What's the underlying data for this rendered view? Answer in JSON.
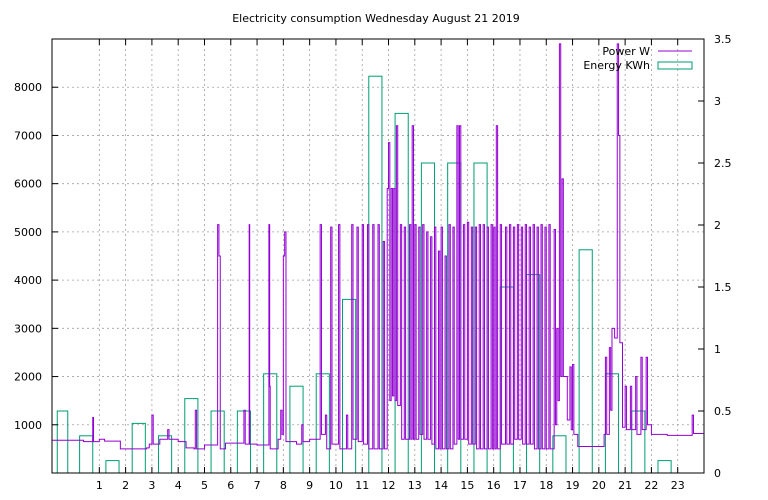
{
  "chart_data": {
    "type": "line",
    "title": "Electricity consumption Wednesday August 21 2019",
    "grid": true,
    "legend_placement": "top-right",
    "x": {
      "range": [
        -0.8,
        24.0
      ],
      "ticks": [
        1,
        2,
        3,
        4,
        5,
        6,
        7,
        8,
        9,
        10,
        11,
        12,
        13,
        14,
        15,
        16,
        17,
        18,
        19,
        20,
        21,
        22,
        23
      ]
    },
    "y_left": {
      "range": [
        0,
        9000
      ],
      "ticks": [
        1000,
        2000,
        3000,
        4000,
        5000,
        6000,
        7000,
        8000
      ]
    },
    "y_right": {
      "range": [
        0,
        3.5
      ],
      "ticks": [
        0,
        0.5,
        1,
        1.5,
        2,
        2.5,
        3,
        3.5
      ]
    },
    "series": [
      {
        "name": "Power W",
        "color": "#9400d3",
        "axis": "left",
        "style": "steps",
        "points": [
          [
            -0.8,
            680
          ],
          [
            0.0,
            680
          ],
          [
            0.4,
            650
          ],
          [
            0.7,
            650
          ],
          [
            0.75,
            1150
          ],
          [
            0.78,
            650
          ],
          [
            1.0,
            700
          ],
          [
            1.2,
            660
          ],
          [
            1.8,
            500
          ],
          [
            2.5,
            500
          ],
          [
            2.8,
            520
          ],
          [
            2.9,
            600
          ],
          [
            3.0,
            1200
          ],
          [
            3.05,
            600
          ],
          [
            3.3,
            700
          ],
          [
            3.6,
            900
          ],
          [
            3.65,
            700
          ],
          [
            4.0,
            650
          ],
          [
            4.3,
            520
          ],
          [
            4.6,
            500
          ],
          [
            4.65,
            1300
          ],
          [
            4.7,
            500
          ],
          [
            5.0,
            580
          ],
          [
            5.3,
            580
          ],
          [
            5.5,
            5150
          ],
          [
            5.55,
            4500
          ],
          [
            5.6,
            500
          ],
          [
            5.8,
            620
          ],
          [
            6.3,
            620
          ],
          [
            6.5,
            1300
          ],
          [
            6.55,
            600
          ],
          [
            6.7,
            5150
          ],
          [
            6.72,
            600
          ],
          [
            7.0,
            580
          ],
          [
            7.3,
            580
          ],
          [
            7.45,
            5150
          ],
          [
            7.48,
            1800
          ],
          [
            7.5,
            500
          ],
          [
            7.8,
            700
          ],
          [
            7.9,
            1300
          ],
          [
            7.95,
            800
          ],
          [
            8.0,
            4500
          ],
          [
            8.05,
            5000
          ],
          [
            8.1,
            650
          ],
          [
            8.5,
            600
          ],
          [
            8.7,
            1000
          ],
          [
            8.75,
            650
          ],
          [
            9.0,
            700
          ],
          [
            9.3,
            700
          ],
          [
            9.4,
            5150
          ],
          [
            9.45,
            800
          ],
          [
            9.6,
            1200
          ],
          [
            9.65,
            500
          ],
          [
            9.8,
            5100
          ],
          [
            9.85,
            600
          ],
          [
            10.1,
            5150
          ],
          [
            10.15,
            500
          ],
          [
            10.4,
            1200
          ],
          [
            10.45,
            500
          ],
          [
            10.6,
            5150
          ],
          [
            10.65,
            700
          ],
          [
            10.8,
            5100
          ],
          [
            10.85,
            650
          ],
          [
            11.0,
            5150
          ],
          [
            11.05,
            600
          ],
          [
            11.2,
            5150
          ],
          [
            11.25,
            500
          ],
          [
            11.4,
            5150
          ],
          [
            11.45,
            500
          ],
          [
            11.6,
            5150
          ],
          [
            11.65,
            500
          ],
          [
            11.8,
            4800
          ],
          [
            11.85,
            500
          ],
          [
            11.95,
            5900
          ],
          [
            12.0,
            6850
          ],
          [
            12.05,
            1500
          ],
          [
            12.1,
            5900
          ],
          [
            12.15,
            1600
          ],
          [
            12.2,
            5900
          ],
          [
            12.25,
            1500
          ],
          [
            12.3,
            7200
          ],
          [
            12.35,
            1400
          ],
          [
            12.45,
            5150
          ],
          [
            12.5,
            700
          ],
          [
            12.6,
            5100
          ],
          [
            12.65,
            700
          ],
          [
            12.8,
            5150
          ],
          [
            12.85,
            700
          ],
          [
            12.9,
            7200
          ],
          [
            12.95,
            700
          ],
          [
            13.0,
            5150
          ],
          [
            13.05,
            700
          ],
          [
            13.15,
            5100
          ],
          [
            13.2,
            800
          ],
          [
            13.3,
            5150
          ],
          [
            13.35,
            700
          ],
          [
            13.45,
            5000
          ],
          [
            13.5,
            700
          ],
          [
            13.6,
            4900
          ],
          [
            13.65,
            600
          ],
          [
            13.75,
            5100
          ],
          [
            13.8,
            500
          ],
          [
            13.9,
            4600
          ],
          [
            13.95,
            500
          ],
          [
            14.0,
            5100
          ],
          [
            14.05,
            500
          ],
          [
            14.15,
            4500
          ],
          [
            14.2,
            500
          ],
          [
            14.3,
            5150
          ],
          [
            14.35,
            500
          ],
          [
            14.45,
            5100
          ],
          [
            14.5,
            600
          ],
          [
            14.6,
            7200
          ],
          [
            14.65,
            700
          ],
          [
            14.7,
            7200
          ],
          [
            14.75,
            700
          ],
          [
            14.85,
            5150
          ],
          [
            14.9,
            700
          ],
          [
            15.0,
            5200
          ],
          [
            15.05,
            600
          ],
          [
            15.15,
            5100
          ],
          [
            15.2,
            600
          ],
          [
            15.3,
            5100
          ],
          [
            15.35,
            500
          ],
          [
            15.45,
            5150
          ],
          [
            15.5,
            500
          ],
          [
            15.6,
            5150
          ],
          [
            15.65,
            500
          ],
          [
            15.75,
            5100
          ],
          [
            15.8,
            500
          ],
          [
            15.9,
            5150
          ],
          [
            15.95,
            500
          ],
          [
            16.0,
            5100
          ],
          [
            16.05,
            500
          ],
          [
            16.1,
            7200
          ],
          [
            16.15,
            500
          ],
          [
            16.25,
            5150
          ],
          [
            16.3,
            600
          ],
          [
            16.45,
            5100
          ],
          [
            16.5,
            600
          ],
          [
            16.6,
            5150
          ],
          [
            16.65,
            600
          ],
          [
            16.75,
            5100
          ],
          [
            16.8,
            700
          ],
          [
            16.9,
            5150
          ],
          [
            16.95,
            700
          ],
          [
            17.05,
            5100
          ],
          [
            17.1,
            600
          ],
          [
            17.2,
            5150
          ],
          [
            17.25,
            600
          ],
          [
            17.35,
            5100
          ],
          [
            17.4,
            600
          ],
          [
            17.5,
            5150
          ],
          [
            17.55,
            500
          ],
          [
            17.65,
            5100
          ],
          [
            17.7,
            500
          ],
          [
            17.8,
            5150
          ],
          [
            17.85,
            500
          ],
          [
            17.95,
            5100
          ],
          [
            18.0,
            500
          ],
          [
            18.1,
            5150
          ],
          [
            18.15,
            500
          ],
          [
            18.3,
            5050
          ],
          [
            18.35,
            1000
          ],
          [
            18.4,
            3000
          ],
          [
            18.45,
            1500
          ],
          [
            18.5,
            8900
          ],
          [
            18.55,
            2000
          ],
          [
            18.6,
            6100
          ],
          [
            18.65,
            2000
          ],
          [
            18.8,
            1100
          ],
          [
            18.9,
            2200
          ],
          [
            18.95,
            900
          ],
          [
            19.0,
            2250
          ],
          [
            19.05,
            800
          ],
          [
            19.2,
            550
          ],
          [
            20.0,
            550
          ],
          [
            20.2,
            800
          ],
          [
            20.25,
            2400
          ],
          [
            20.3,
            800
          ],
          [
            20.4,
            2600
          ],
          [
            20.45,
            1300
          ],
          [
            20.5,
            3000
          ],
          [
            20.6,
            2800
          ],
          [
            20.7,
            8900
          ],
          [
            20.75,
            7000
          ],
          [
            20.8,
            2700
          ],
          [
            20.9,
            950
          ],
          [
            21.0,
            1800
          ],
          [
            21.05,
            900
          ],
          [
            21.2,
            1800
          ],
          [
            21.25,
            900
          ],
          [
            21.4,
            2000
          ],
          [
            21.45,
            800
          ],
          [
            21.6,
            2400
          ],
          [
            21.65,
            900
          ],
          [
            21.8,
            2400
          ],
          [
            21.85,
            1000
          ],
          [
            22.0,
            800
          ],
          [
            22.5,
            800
          ],
          [
            22.6,
            780
          ],
          [
            23.3,
            780
          ],
          [
            23.5,
            780
          ],
          [
            23.55,
            1200
          ],
          [
            23.6,
            820
          ],
          [
            24.0,
            820
          ]
        ]
      },
      {
        "name": "Energy KWh",
        "color": "#009e73",
        "axis": "right",
        "style": "boxes",
        "bars": [
          [
            -1.0,
            0.5
          ],
          [
            0.0,
            0.3
          ],
          [
            1.0,
            0.1
          ],
          [
            2.0,
            0.4
          ],
          [
            3.0,
            0.3
          ],
          [
            4.0,
            0.6
          ],
          [
            5.0,
            0.5
          ],
          [
            6.0,
            0.5
          ],
          [
            7.0,
            0.8
          ],
          [
            8.0,
            0.7
          ],
          [
            9.0,
            0.8
          ],
          [
            10.0,
            1.4
          ],
          [
            11.0,
            3.2
          ],
          [
            12.0,
            2.9
          ],
          [
            13.0,
            2.5
          ],
          [
            14.0,
            2.5
          ],
          [
            15.0,
            2.5
          ],
          [
            16.0,
            1.5
          ],
          [
            17.0,
            1.6
          ],
          [
            18.0,
            0.3
          ],
          [
            19.0,
            1.8
          ],
          [
            20.0,
            0.8
          ],
          [
            21.0,
            0.5
          ],
          [
            22.0,
            0.1
          ]
        ]
      }
    ]
  }
}
